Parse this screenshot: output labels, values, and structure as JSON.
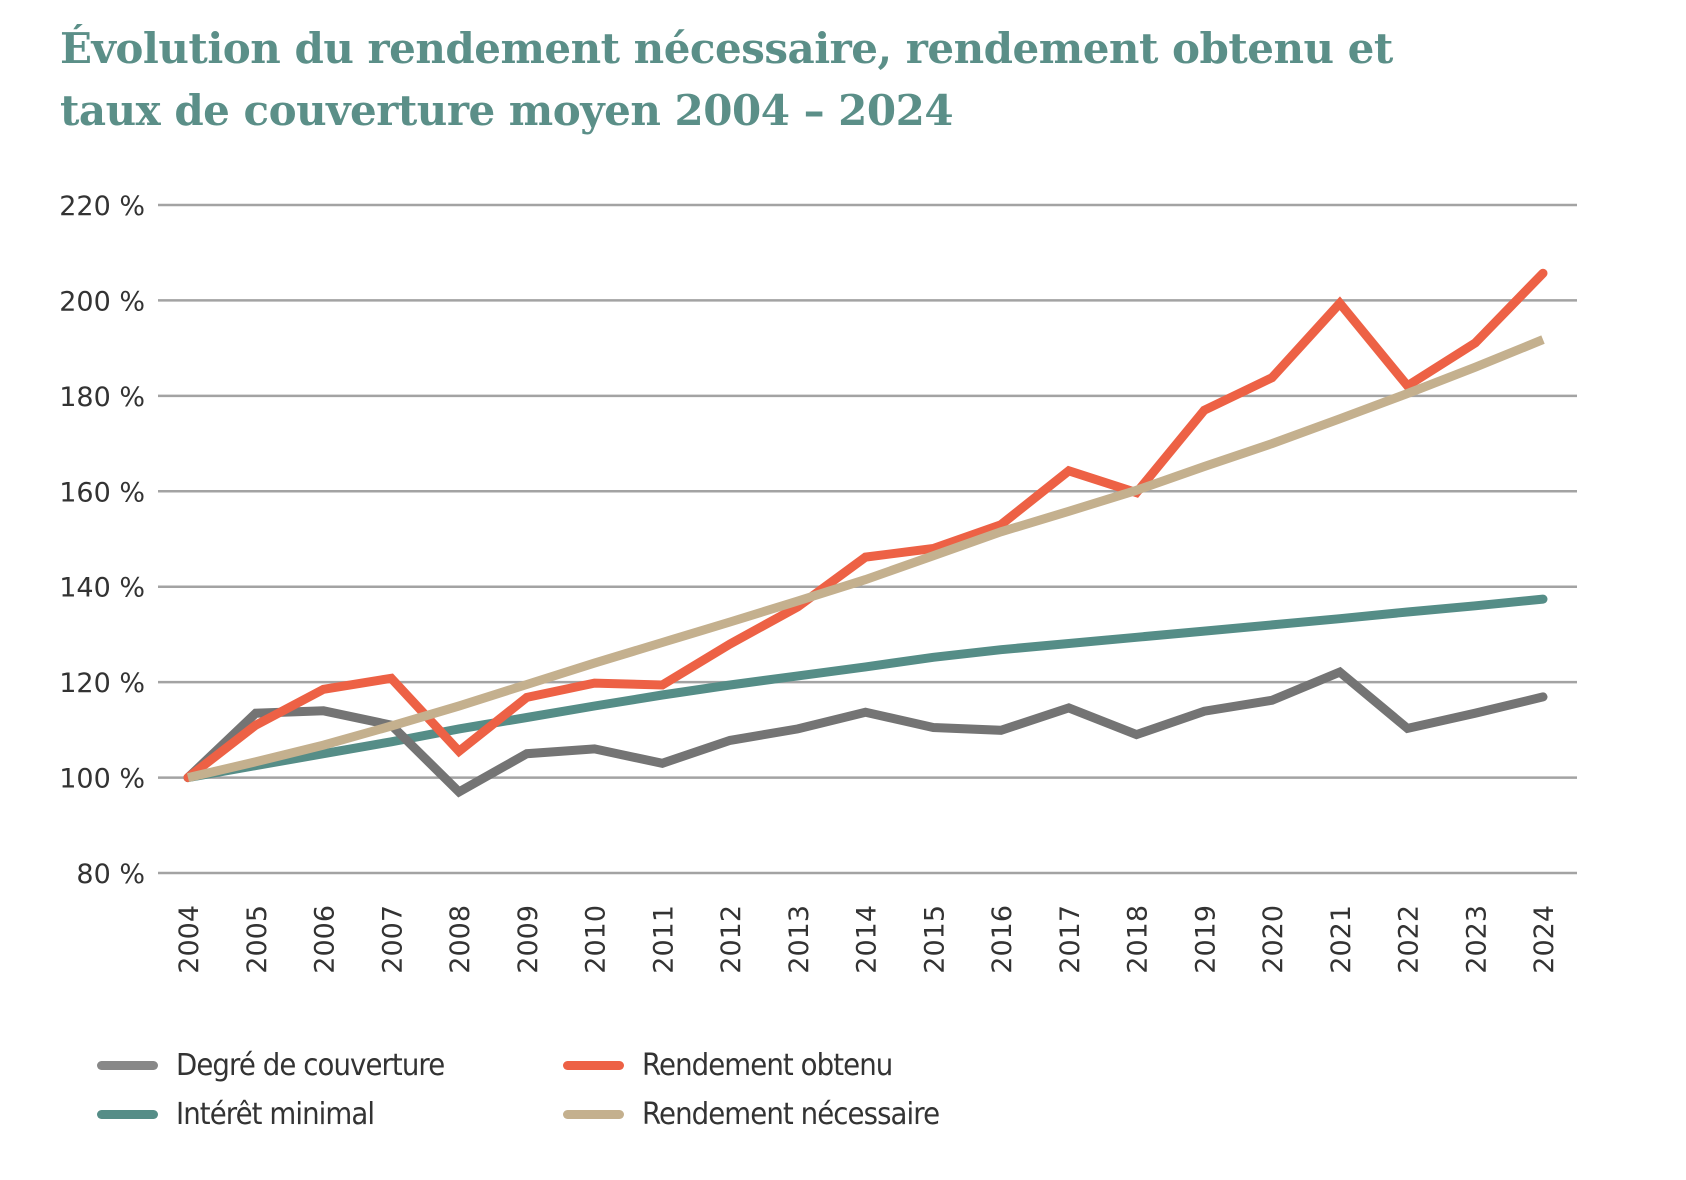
{
  "chart_data": {
    "type": "line",
    "title": "Évolution du rendement nécessaire, rendement obtenu et taux de couverture moyen 2004 – 2024",
    "title_lines": [
      "Évolution du rendement nécessaire, rendement obtenu et",
      "taux de couverture moyen 2004 – 2024"
    ],
    "xlabel": "",
    "ylabel": "",
    "ylim": [
      80,
      220
    ],
    "yticks": [
      80,
      100,
      120,
      140,
      160,
      180,
      200,
      220
    ],
    "ytick_labels": [
      "80 %",
      "100 %",
      "120 %",
      "140 %",
      "160 %",
      "180 %",
      "200 %",
      "220 %"
    ],
    "grid": "horizontal",
    "legend_position": "bottom-left",
    "x": [
      "2004",
      "2005",
      "2006",
      "2007",
      "2008",
      "2009",
      "2010",
      "2011",
      "2012",
      "2013",
      "2014",
      "2015",
      "2016",
      "2017",
      "2018",
      "2019",
      "2020",
      "2021",
      "2022",
      "2023",
      "2024"
    ],
    "series": [
      {
        "name": "Degré de couverture",
        "color": "#747474",
        "values": [
          100,
          113.5,
          114,
          111,
          97,
          105,
          106,
          103,
          107.8,
          110.2,
          113.7,
          110.5,
          109.9,
          114.6,
          109,
          113.9,
          116.2,
          122.1,
          110.3,
          113.5,
          116.9
        ]
      },
      {
        "name": "Rendement obtenu",
        "color": "#ed6145",
        "values": [
          100,
          111,
          118.5,
          120.8,
          105.5,
          116.8,
          119.8,
          119.4,
          128,
          135.8,
          146.2,
          148,
          153,
          164.3,
          159.7,
          177,
          183.8,
          199.4,
          182.1,
          191.1,
          205.7
        ]
      },
      {
        "name": "Intérêt minimal",
        "color": "#558d87",
        "values": [
          100,
          102.5,
          105,
          107.5,
          110.2,
          112.6,
          115,
          117.3,
          119.4,
          121.3,
          123.2,
          125.2,
          126.8,
          128.1,
          129.4,
          130.7,
          132,
          133.3,
          134.7,
          136,
          137.4
        ]
      },
      {
        "name": "Rendement nécessaire",
        "color": "#c4b08e",
        "values": [
          100,
          103.3,
          106.8,
          110.8,
          115,
          119.5,
          124,
          128.3,
          132.6,
          137,
          141.5,
          146.5,
          151.5,
          155.8,
          160.2,
          165.2,
          170,
          175.2,
          180.5,
          186,
          191.8
        ]
      }
    ],
    "legend": [
      {
        "series": 0,
        "label": "Degré de couverture",
        "color": "#888888"
      },
      {
        "series": 1,
        "label": "Rendement obtenu",
        "color": "#ed6145"
      },
      {
        "series": 2,
        "label": "Intérêt minimal",
        "color": "#558d87"
      },
      {
        "series": 3,
        "label": "Rendement nécessaire",
        "color": "#c4b08e"
      }
    ]
  }
}
